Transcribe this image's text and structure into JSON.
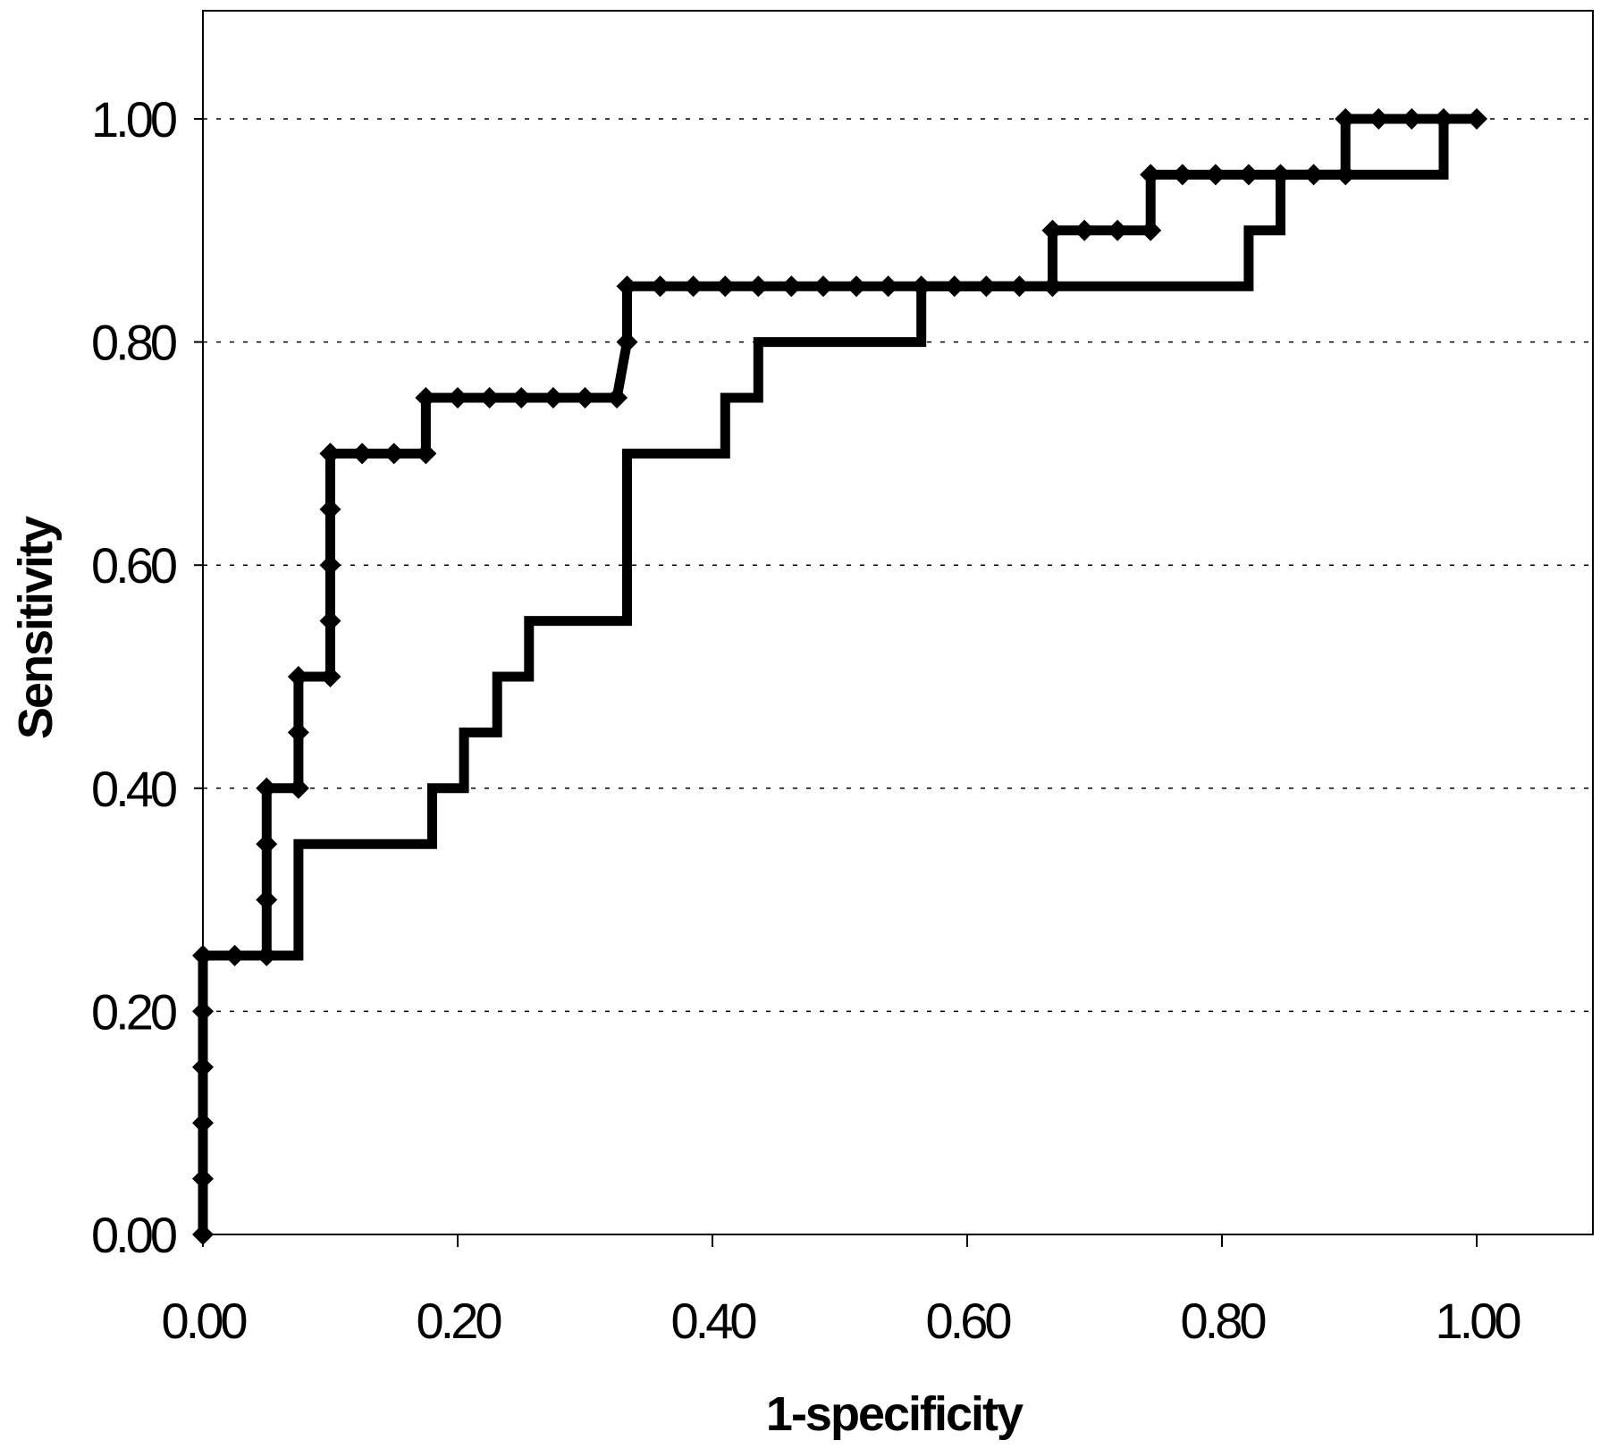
{
  "chart_data": {
    "type": "line",
    "xlabel": "1-specificity",
    "ylabel": "Sensitivity",
    "xlim": [
      0,
      1.1
    ],
    "ylim": [
      0,
      1.1
    ],
    "xticks": [
      "0.00",
      "0.20",
      "0.40",
      "0.60",
      "0.80",
      "1.00"
    ],
    "yticks": [
      "0.00",
      "0.20",
      "0.40",
      "0.60",
      "0.80",
      "1.00"
    ],
    "grid": "horizontal dotted",
    "legend": "none",
    "series": [
      {
        "style": "line with diamond markers",
        "color": "#000000",
        "x": [
          0,
          0,
          0,
          0,
          0,
          0,
          0.025,
          0.05,
          0.05,
          0.05,
          0.05,
          0.075,
          0.075,
          0.075,
          0.1,
          0.1,
          0.1,
          0.1,
          0.1,
          0.1,
          0.125,
          0.15,
          0.175,
          0.175,
          0.2,
          0.225,
          0.25,
          0.275,
          0.3,
          0.325,
          0.333,
          0.333,
          0.359,
          0.385,
          0.41,
          0.436,
          0.462,
          0.487,
          0.513,
          0.538,
          0.564,
          0.59,
          0.615,
          0.641,
          0.667,
          0.667,
          0.692,
          0.718,
          0.744,
          0.744,
          0.769,
          0.795,
          0.821,
          0.846,
          0.872,
          0.897,
          0.897,
          0.923,
          0.949,
          0.974,
          1.0
        ],
        "y": [
          0,
          0.05,
          0.1,
          0.15,
          0.2,
          0.25,
          0.25,
          0.25,
          0.3,
          0.35,
          0.4,
          0.4,
          0.45,
          0.5,
          0.5,
          0.55,
          0.6,
          0.65,
          0.7,
          0.7,
          0.7,
          0.7,
          0.7,
          0.75,
          0.75,
          0.75,
          0.75,
          0.75,
          0.75,
          0.75,
          0.8,
          0.85,
          0.85,
          0.85,
          0.85,
          0.85,
          0.85,
          0.85,
          0.85,
          0.85,
          0.85,
          0.85,
          0.85,
          0.85,
          0.85,
          0.9,
          0.9,
          0.9,
          0.9,
          0.95,
          0.95,
          0.95,
          0.95,
          0.95,
          0.95,
          0.95,
          1.0,
          1.0,
          1.0,
          1.0,
          1.0
        ]
      },
      {
        "style": "line",
        "color": "#000000",
        "x": [
          0,
          0,
          0.075,
          0.075,
          0.18,
          0.18,
          0.205,
          0.205,
          0.231,
          0.231,
          0.256,
          0.256,
          0.333,
          0.333,
          0.41,
          0.41,
          0.436,
          0.436,
          0.564,
          0.564,
          0.821,
          0.821,
          0.846,
          0.846,
          0.974,
          0.974,
          1.0
        ],
        "y": [
          0,
          0.25,
          0.25,
          0.35,
          0.35,
          0.4,
          0.4,
          0.45,
          0.45,
          0.5,
          0.5,
          0.55,
          0.55,
          0.7,
          0.7,
          0.75,
          0.75,
          0.8,
          0.8,
          0.85,
          0.85,
          0.9,
          0.9,
          0.95,
          0.95,
          1.0,
          1.0
        ]
      }
    ]
  }
}
